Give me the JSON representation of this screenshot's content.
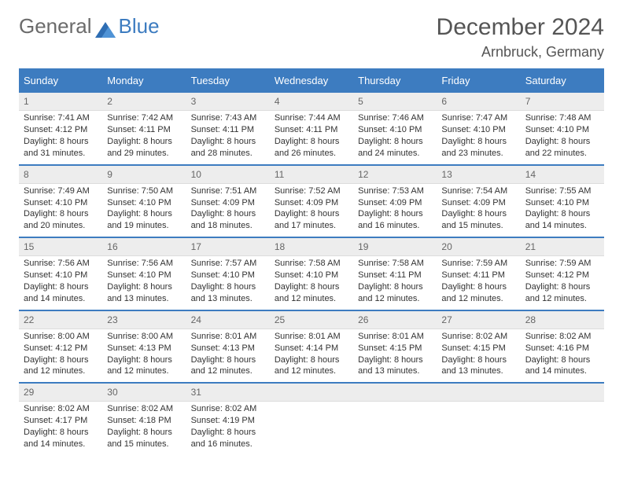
{
  "logo": {
    "text1": "General",
    "text2": "Blue"
  },
  "title": {
    "month": "December 2024",
    "location": "Arnbruck, Germany"
  },
  "colors": {
    "header_bg": "#3d7cc0",
    "header_text": "#ffffff",
    "row_divider": "#3d7cc0",
    "daynum_bg": "#ededed",
    "page_bg": "#ffffff",
    "body_text": "#333333",
    "muted_text": "#666666"
  },
  "weekdays": [
    "Sunday",
    "Monday",
    "Tuesday",
    "Wednesday",
    "Thursday",
    "Friday",
    "Saturday"
  ],
  "days": [
    {
      "n": "1",
      "sunrise": "Sunrise: 7:41 AM",
      "sunset": "Sunset: 4:12 PM",
      "daylight": "Daylight: 8 hours and 31 minutes."
    },
    {
      "n": "2",
      "sunrise": "Sunrise: 7:42 AM",
      "sunset": "Sunset: 4:11 PM",
      "daylight": "Daylight: 8 hours and 29 minutes."
    },
    {
      "n": "3",
      "sunrise": "Sunrise: 7:43 AM",
      "sunset": "Sunset: 4:11 PM",
      "daylight": "Daylight: 8 hours and 28 minutes."
    },
    {
      "n": "4",
      "sunrise": "Sunrise: 7:44 AM",
      "sunset": "Sunset: 4:11 PM",
      "daylight": "Daylight: 8 hours and 26 minutes."
    },
    {
      "n": "5",
      "sunrise": "Sunrise: 7:46 AM",
      "sunset": "Sunset: 4:10 PM",
      "daylight": "Daylight: 8 hours and 24 minutes."
    },
    {
      "n": "6",
      "sunrise": "Sunrise: 7:47 AM",
      "sunset": "Sunset: 4:10 PM",
      "daylight": "Daylight: 8 hours and 23 minutes."
    },
    {
      "n": "7",
      "sunrise": "Sunrise: 7:48 AM",
      "sunset": "Sunset: 4:10 PM",
      "daylight": "Daylight: 8 hours and 22 minutes."
    },
    {
      "n": "8",
      "sunrise": "Sunrise: 7:49 AM",
      "sunset": "Sunset: 4:10 PM",
      "daylight": "Daylight: 8 hours and 20 minutes."
    },
    {
      "n": "9",
      "sunrise": "Sunrise: 7:50 AM",
      "sunset": "Sunset: 4:10 PM",
      "daylight": "Daylight: 8 hours and 19 minutes."
    },
    {
      "n": "10",
      "sunrise": "Sunrise: 7:51 AM",
      "sunset": "Sunset: 4:09 PM",
      "daylight": "Daylight: 8 hours and 18 minutes."
    },
    {
      "n": "11",
      "sunrise": "Sunrise: 7:52 AM",
      "sunset": "Sunset: 4:09 PM",
      "daylight": "Daylight: 8 hours and 17 minutes."
    },
    {
      "n": "12",
      "sunrise": "Sunrise: 7:53 AM",
      "sunset": "Sunset: 4:09 PM",
      "daylight": "Daylight: 8 hours and 16 minutes."
    },
    {
      "n": "13",
      "sunrise": "Sunrise: 7:54 AM",
      "sunset": "Sunset: 4:09 PM",
      "daylight": "Daylight: 8 hours and 15 minutes."
    },
    {
      "n": "14",
      "sunrise": "Sunrise: 7:55 AM",
      "sunset": "Sunset: 4:10 PM",
      "daylight": "Daylight: 8 hours and 14 minutes."
    },
    {
      "n": "15",
      "sunrise": "Sunrise: 7:56 AM",
      "sunset": "Sunset: 4:10 PM",
      "daylight": "Daylight: 8 hours and 14 minutes."
    },
    {
      "n": "16",
      "sunrise": "Sunrise: 7:56 AM",
      "sunset": "Sunset: 4:10 PM",
      "daylight": "Daylight: 8 hours and 13 minutes."
    },
    {
      "n": "17",
      "sunrise": "Sunrise: 7:57 AM",
      "sunset": "Sunset: 4:10 PM",
      "daylight": "Daylight: 8 hours and 13 minutes."
    },
    {
      "n": "18",
      "sunrise": "Sunrise: 7:58 AM",
      "sunset": "Sunset: 4:10 PM",
      "daylight": "Daylight: 8 hours and 12 minutes."
    },
    {
      "n": "19",
      "sunrise": "Sunrise: 7:58 AM",
      "sunset": "Sunset: 4:11 PM",
      "daylight": "Daylight: 8 hours and 12 minutes."
    },
    {
      "n": "20",
      "sunrise": "Sunrise: 7:59 AM",
      "sunset": "Sunset: 4:11 PM",
      "daylight": "Daylight: 8 hours and 12 minutes."
    },
    {
      "n": "21",
      "sunrise": "Sunrise: 7:59 AM",
      "sunset": "Sunset: 4:12 PM",
      "daylight": "Daylight: 8 hours and 12 minutes."
    },
    {
      "n": "22",
      "sunrise": "Sunrise: 8:00 AM",
      "sunset": "Sunset: 4:12 PM",
      "daylight": "Daylight: 8 hours and 12 minutes."
    },
    {
      "n": "23",
      "sunrise": "Sunrise: 8:00 AM",
      "sunset": "Sunset: 4:13 PM",
      "daylight": "Daylight: 8 hours and 12 minutes."
    },
    {
      "n": "24",
      "sunrise": "Sunrise: 8:01 AM",
      "sunset": "Sunset: 4:13 PM",
      "daylight": "Daylight: 8 hours and 12 minutes."
    },
    {
      "n": "25",
      "sunrise": "Sunrise: 8:01 AM",
      "sunset": "Sunset: 4:14 PM",
      "daylight": "Daylight: 8 hours and 12 minutes."
    },
    {
      "n": "26",
      "sunrise": "Sunrise: 8:01 AM",
      "sunset": "Sunset: 4:15 PM",
      "daylight": "Daylight: 8 hours and 13 minutes."
    },
    {
      "n": "27",
      "sunrise": "Sunrise: 8:02 AM",
      "sunset": "Sunset: 4:15 PM",
      "daylight": "Daylight: 8 hours and 13 minutes."
    },
    {
      "n": "28",
      "sunrise": "Sunrise: 8:02 AM",
      "sunset": "Sunset: 4:16 PM",
      "daylight": "Daylight: 8 hours and 14 minutes."
    },
    {
      "n": "29",
      "sunrise": "Sunrise: 8:02 AM",
      "sunset": "Sunset: 4:17 PM",
      "daylight": "Daylight: 8 hours and 14 minutes."
    },
    {
      "n": "30",
      "sunrise": "Sunrise: 8:02 AM",
      "sunset": "Sunset: 4:18 PM",
      "daylight": "Daylight: 8 hours and 15 minutes."
    },
    {
      "n": "31",
      "sunrise": "Sunrise: 8:02 AM",
      "sunset": "Sunset: 4:19 PM",
      "daylight": "Daylight: 8 hours and 16 minutes."
    }
  ]
}
